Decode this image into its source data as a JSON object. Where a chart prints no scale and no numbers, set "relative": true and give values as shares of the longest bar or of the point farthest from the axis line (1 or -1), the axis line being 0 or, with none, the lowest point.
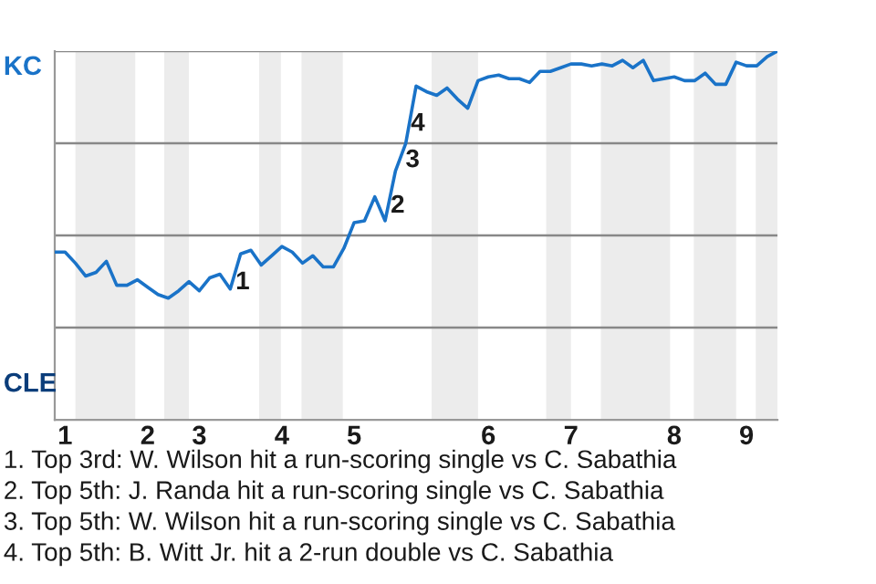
{
  "chart_data": {
    "type": "line",
    "relative": true,
    "categories": [
      null,
      "1",
      null,
      null,
      null,
      null,
      null,
      null,
      null,
      "2",
      null,
      null,
      null,
      null,
      "3",
      null,
      null,
      null,
      null,
      null,
      null,
      null,
      "4",
      null,
      null,
      null,
      null,
      null,
      null,
      "5",
      null,
      null,
      null,
      null,
      null,
      null,
      null,
      null,
      null,
      null,
      null,
      null,
      "6",
      null,
      null,
      null,
      null,
      null,
      null,
      null,
      "7",
      null,
      null,
      null,
      null,
      null,
      null,
      null,
      null,
      null,
      "8",
      null,
      null,
      null,
      null,
      null,
      null,
      "9",
      null,
      null,
      null
    ],
    "series": [
      {
        "color": "#1a73c8",
        "values": [
          0.455,
          0.455,
          0.425,
          0.39,
          0.4,
          0.43,
          0.365,
          0.365,
          0.38,
          0.36,
          0.34,
          0.33,
          0.35,
          0.375,
          0.35,
          0.385,
          0.395,
          0.355,
          0.45,
          0.46,
          0.42,
          0.445,
          0.47,
          0.455,
          0.425,
          0.445,
          0.415,
          0.415,
          0.465,
          0.535,
          0.54,
          0.605,
          0.54,
          0.675,
          0.75,
          0.905,
          0.89,
          0.88,
          0.9,
          0.87,
          0.845,
          0.92,
          0.93,
          0.935,
          0.925,
          0.925,
          0.915,
          0.945,
          0.945,
          0.955,
          0.965,
          0.965,
          0.96,
          0.965,
          0.96,
          0.975,
          0.955,
          0.975,
          0.92,
          0.925,
          0.93,
          0.92,
          0.92,
          0.94,
          0.91,
          0.91,
          0.97,
          0.96,
          0.96,
          0.985,
          1.0
        ]
      }
    ],
    "grid": "y",
    "annotations": [
      "KC",
      "CLE",
      "1",
      "2",
      "3",
      "4",
      "1. Top 3rd: W. Wilson hit a run-scoring single vs C. Sabathia",
      "2. Top 5th: J. Randa hit a run-scoring single vs C. Sabathia",
      "3. Top 5th: W. Wilson hit a run-scoring single vs C. Sabathia",
      "4. Top 5th: B. Witt Jr. hit a 2-run double vs C. Sabathia"
    ]
  }
}
